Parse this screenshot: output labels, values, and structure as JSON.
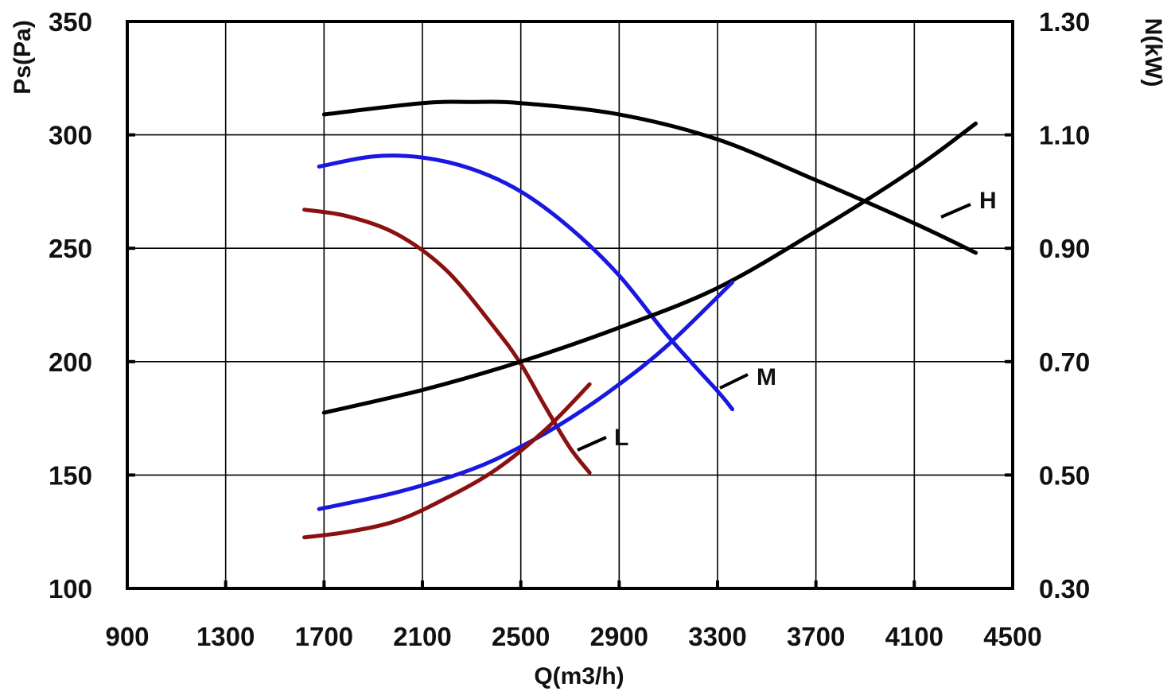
{
  "chart_data": {
    "type": "line",
    "xlabel": "Q(m3/h)",
    "ylabel": "Ps(Pa)",
    "y2label": "N(kW)",
    "xlim": [
      900,
      4500
    ],
    "ylim": [
      100,
      350
    ],
    "y2lim": [
      0.3,
      1.3
    ],
    "x_ticks": [
      "900",
      "1300",
      "1700",
      "2100",
      "2500",
      "2900",
      "3300",
      "3700",
      "4100",
      "4500"
    ],
    "y_ticks": [
      "100",
      "150",
      "200",
      "250",
      "300",
      "350"
    ],
    "y2_ticks": [
      "0.30",
      "0.50",
      "0.70",
      "0.90",
      "1.10",
      "1.30"
    ],
    "grid": true,
    "curve_labels": {
      "H": "H",
      "M": "M",
      "L": "L"
    },
    "series": [
      {
        "speed": "H",
        "kind": "pressure",
        "axis": "left",
        "color": "#000000",
        "x": [
          1700,
          2100,
          2300,
          2500,
          2900,
          3300,
          3700,
          4100,
          4350
        ],
        "y": [
          309,
          314,
          314.5,
          314,
          309,
          298,
          280,
          261,
          248
        ]
      },
      {
        "speed": "M",
        "kind": "pressure",
        "axis": "left",
        "color": "#1818e0",
        "x": [
          1680,
          1900,
          2100,
          2300,
          2500,
          2700,
          2900,
          3100,
          3300,
          3360
        ],
        "y": [
          286,
          290.5,
          290,
          285,
          275,
          259,
          238,
          211,
          187,
          179
        ]
      },
      {
        "speed": "L",
        "kind": "pressure",
        "axis": "left",
        "color": "#8b1010",
        "x": [
          1620,
          1800,
          2000,
          2200,
          2400,
          2500,
          2600,
          2700,
          2780
        ],
        "y": [
          267,
          264,
          256,
          240,
          214,
          199,
          180,
          162,
          151
        ]
      },
      {
        "speed": "H",
        "kind": "power",
        "axis": "right",
        "color": "#000000",
        "x": [
          1700,
          2100,
          2500,
          2900,
          3300,
          3700,
          4100,
          4350
        ],
        "y": [
          0.61,
          0.65,
          0.7,
          0.76,
          0.83,
          0.93,
          1.04,
          1.12
        ]
      },
      {
        "speed": "M",
        "kind": "power",
        "axis": "right",
        "color": "#1818e0",
        "x": [
          1680,
          2000,
          2300,
          2500,
          2700,
          2900,
          3100,
          3360
        ],
        "y": [
          0.44,
          0.47,
          0.51,
          0.55,
          0.6,
          0.66,
          0.73,
          0.84
        ]
      },
      {
        "speed": "L",
        "kind": "power",
        "axis": "right",
        "color": "#8b1010",
        "x": [
          1620,
          1800,
          2000,
          2200,
          2400,
          2600,
          2780
        ],
        "y": [
          0.39,
          0.4,
          0.42,
          0.46,
          0.51,
          0.58,
          0.66
        ]
      }
    ]
  }
}
